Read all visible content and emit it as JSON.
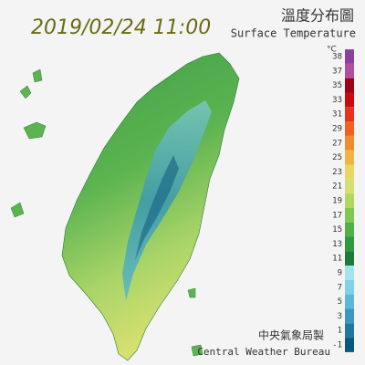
{
  "header": {
    "datetime": "2019/02/24 11:00",
    "title": "溫度分布圖",
    "subtitle": "Surface Temperature"
  },
  "legend": {
    "unit": "°C",
    "items": [
      {
        "value": 38,
        "color": "#8b3fa3"
      },
      {
        "value": 37,
        "color": "#b04f9e"
      },
      {
        "value": 35,
        "color": "#9e0018"
      },
      {
        "value": 33,
        "color": "#cc0a0a"
      },
      {
        "value": 31,
        "color": "#e8321e"
      },
      {
        "value": 29,
        "color": "#f0621e"
      },
      {
        "value": 27,
        "color": "#f08c30"
      },
      {
        "value": 25,
        "color": "#f2b440"
      },
      {
        "value": 23,
        "color": "#e8d860"
      },
      {
        "value": 21,
        "color": "#d6e070"
      },
      {
        "value": 19,
        "color": "#b0d85e"
      },
      {
        "value": 17,
        "color": "#80c850"
      },
      {
        "value": 15,
        "color": "#52b048"
      },
      {
        "value": 13,
        "color": "#2e9a40"
      },
      {
        "value": 11,
        "color": "#1e7a38"
      },
      {
        "value": 9,
        "color": "#a4e2f0"
      },
      {
        "value": 7,
        "color": "#80d0e8"
      },
      {
        "value": 5,
        "color": "#5cb8d8"
      },
      {
        "value": 3,
        "color": "#3a98c0"
      },
      {
        "value": 1,
        "color": "#1e78a0"
      },
      {
        "value": -1,
        "color": "#0a5880"
      }
    ]
  },
  "footer": {
    "agency_zh": "中央氣象局製",
    "agency_en": "Central Weather Bureau"
  }
}
